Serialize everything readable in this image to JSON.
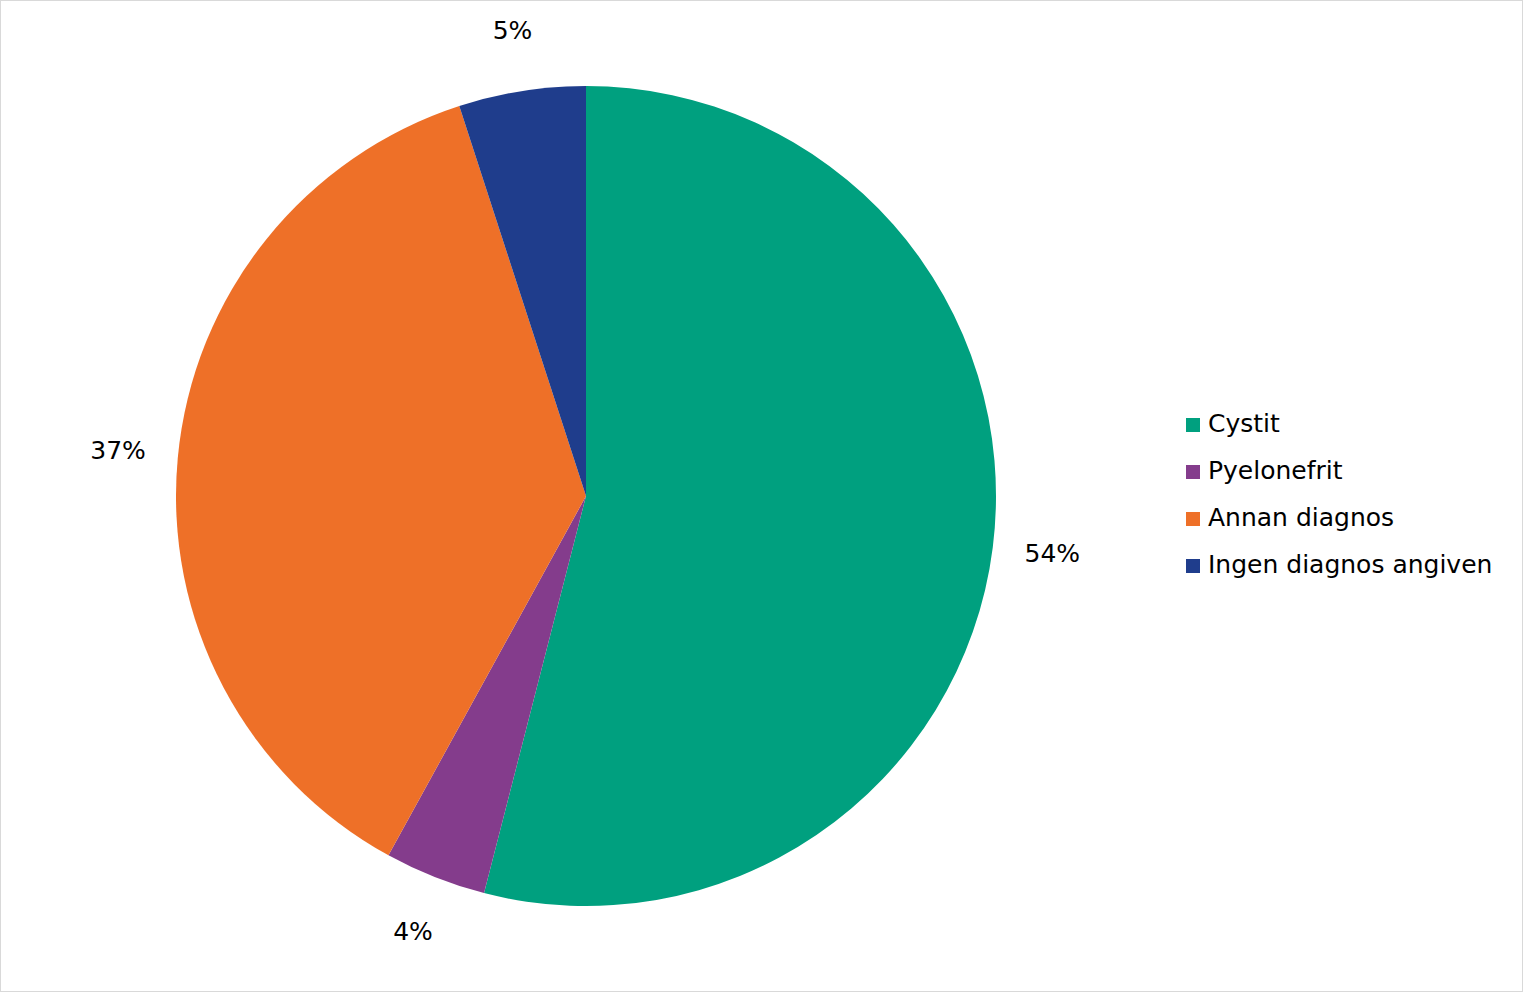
{
  "chart_data": {
    "type": "pie",
    "categories": [
      "Cystit",
      "Pyelonefrit",
      "Annan diagnos",
      "Ingen diagnos angiven"
    ],
    "values": [
      54,
      4,
      37,
      5
    ],
    "value_labels": [
      "54%",
      "4%",
      "37%",
      "5%"
    ],
    "colors": [
      "#00a07f",
      "#843c8c",
      "#ee7028",
      "#1f3d8c"
    ],
    "data_labels": true,
    "legend": "right"
  }
}
